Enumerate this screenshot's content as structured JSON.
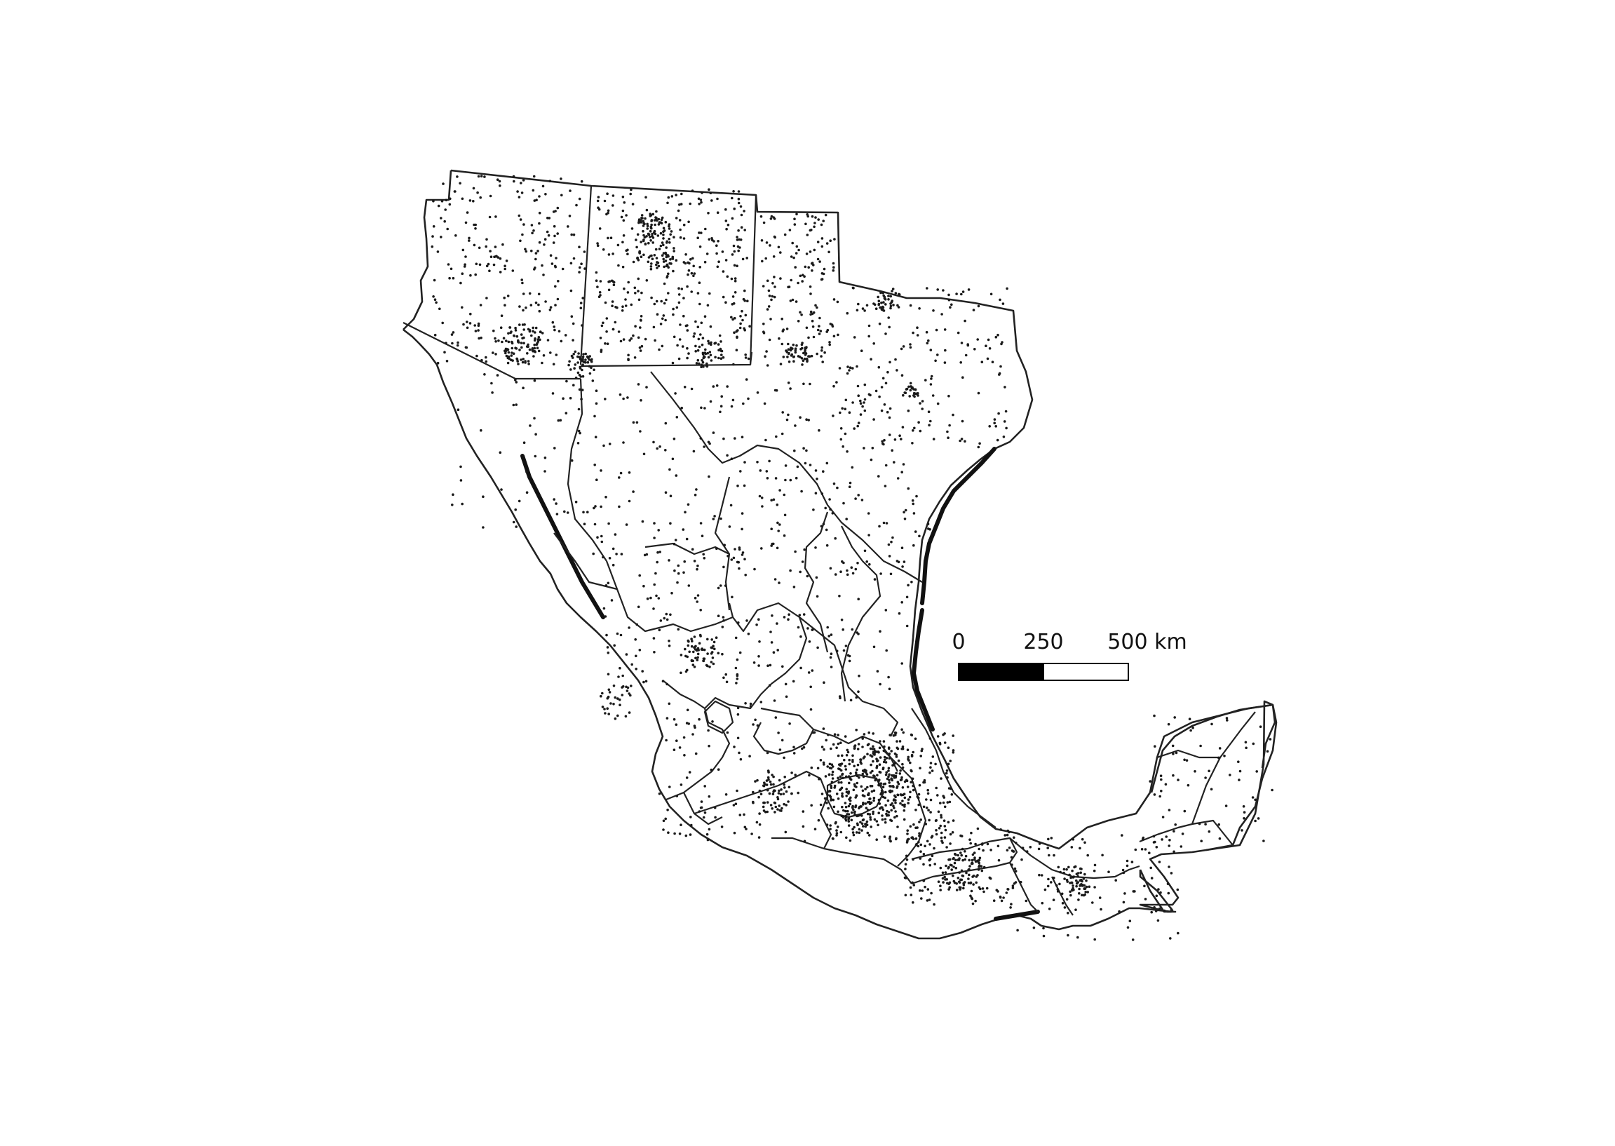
{
  "map": {
    "scale_bar": {
      "labels": [
        "0",
        "250",
        "500 km"
      ],
      "segment_colors": [
        "#000000",
        "#ffffff"
      ],
      "outline_color": "#000000"
    },
    "colors": {
      "boundary": "#222222",
      "points": "#1a1a1a",
      "background": "#ffffff"
    }
  }
}
